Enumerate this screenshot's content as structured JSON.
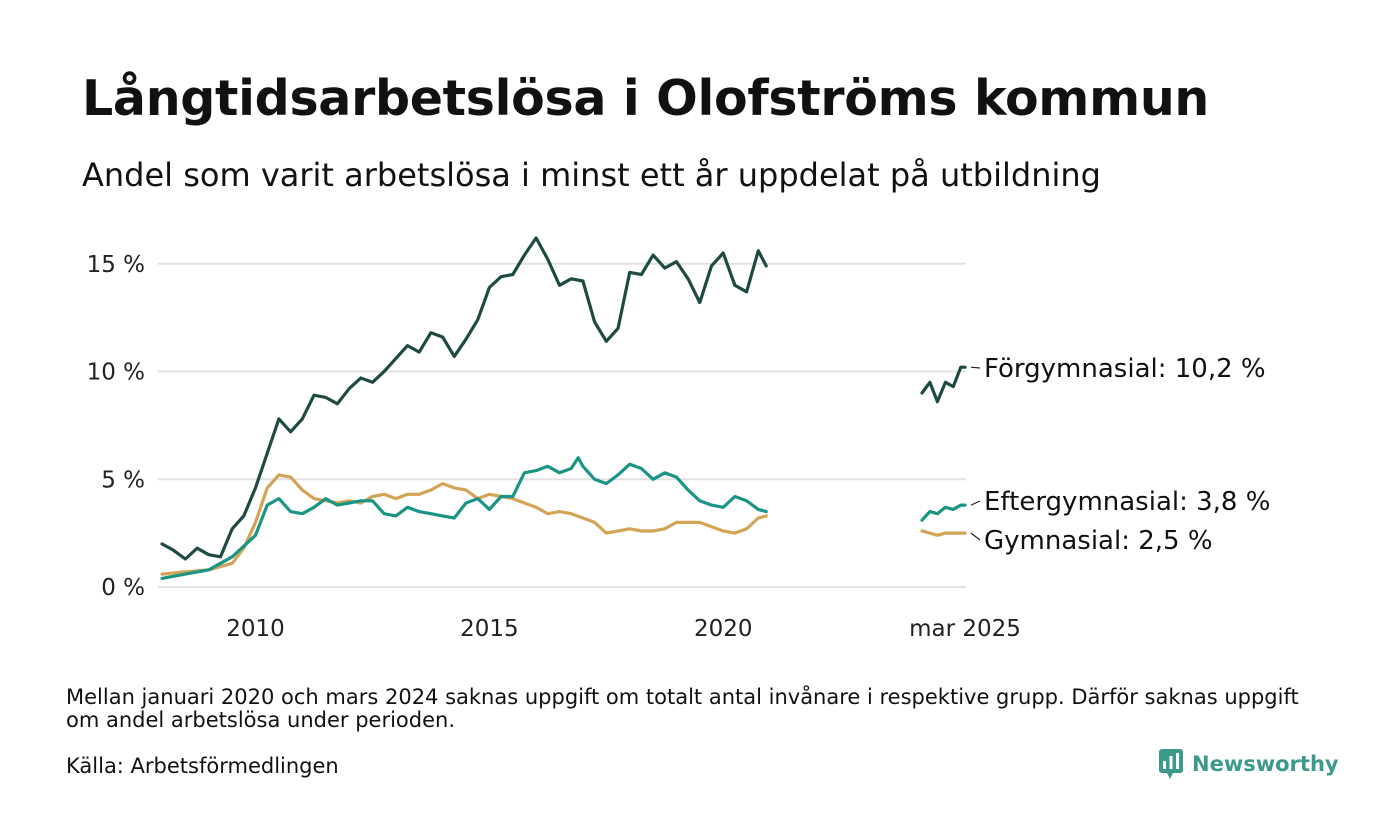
{
  "title": "Långtidsarbetslösa i Olofströms kommun",
  "subtitle": "Andel som varit arbetslösa i minst ett år uppdelat på utbildning",
  "note": "Mellan januari 2020 och mars 2024 saknas uppgift om totalt antal invånare i respektive grupp. Därför saknas uppgift om andel arbetslösa under perioden.",
  "source": "Källa: Arbetsförmedlingen",
  "brand": {
    "name": "Newsworthy",
    "icon": "newsworthy-logo-icon",
    "color": "#3d9a8b"
  },
  "chart_data": {
    "type": "line",
    "title": "Långtidsarbetslösa i Olofströms kommun",
    "subtitle": "Andel som varit arbetslösa i minst ett år uppdelat på utbildning",
    "xlabel": "",
    "ylabel": "",
    "ylim": [
      0,
      16.5
    ],
    "y_ticks": [
      0,
      5,
      10,
      15
    ],
    "y_tick_labels": [
      "0 %",
      "5 %",
      "10 %",
      "15 %"
    ],
    "x_ticks": [
      2010,
      2015,
      2020,
      2025.17
    ],
    "x_tick_labels": [
      "2010",
      "2015",
      "2020",
      "mar 2025"
    ],
    "grid": true,
    "legend": "end-labels",
    "series": [
      {
        "name": "Förgymnasial",
        "end_label": "Förgymnasial: 10,2 %",
        "color": "#1f4a44",
        "segments": [
          [
            [
              2008.0,
              2.0
            ],
            [
              2008.25,
              1.7
            ],
            [
              2008.5,
              1.3
            ],
            [
              2008.75,
              1.8
            ],
            [
              2009.0,
              1.5
            ],
            [
              2009.25,
              1.4
            ],
            [
              2009.5,
              2.7
            ],
            [
              2009.75,
              3.3
            ],
            [
              2010.0,
              4.6
            ],
            [
              2010.25,
              6.2
            ],
            [
              2010.5,
              7.8
            ],
            [
              2010.75,
              7.2
            ],
            [
              2011.0,
              7.8
            ],
            [
              2011.25,
              8.9
            ],
            [
              2011.5,
              8.8
            ],
            [
              2011.75,
              8.5
            ],
            [
              2012.0,
              9.2
            ],
            [
              2012.25,
              9.7
            ],
            [
              2012.5,
              9.5
            ],
            [
              2012.75,
              10.0
            ],
            [
              2013.0,
              10.6
            ],
            [
              2013.25,
              11.2
            ],
            [
              2013.5,
              10.9
            ],
            [
              2013.75,
              11.8
            ],
            [
              2014.0,
              11.6
            ],
            [
              2014.25,
              10.7
            ],
            [
              2014.5,
              11.5
            ],
            [
              2014.75,
              12.4
            ],
            [
              2015.0,
              13.9
            ],
            [
              2015.25,
              14.4
            ],
            [
              2015.5,
              14.5
            ],
            [
              2015.75,
              15.4
            ],
            [
              2016.0,
              16.2
            ],
            [
              2016.25,
              15.2
            ],
            [
              2016.5,
              14.0
            ],
            [
              2016.75,
              14.3
            ],
            [
              2017.0,
              14.2
            ],
            [
              2017.25,
              12.3
            ],
            [
              2017.5,
              11.4
            ],
            [
              2017.75,
              12.0
            ],
            [
              2018.0,
              14.6
            ],
            [
              2018.25,
              14.5
            ],
            [
              2018.5,
              15.4
            ],
            [
              2018.75,
              14.8
            ],
            [
              2019.0,
              15.1
            ],
            [
              2019.25,
              14.3
            ],
            [
              2019.5,
              13.2
            ],
            [
              2019.75,
              14.9
            ],
            [
              2020.0,
              15.5
            ],
            [
              2020.25,
              14.0
            ],
            [
              2020.5,
              13.7
            ],
            [
              2020.75,
              15.6
            ],
            [
              2020.92,
              14.9
            ]
          ],
          [
            [
              2024.25,
              9.0
            ],
            [
              2024.42,
              9.5
            ],
            [
              2024.58,
              8.6
            ],
            [
              2024.75,
              9.5
            ],
            [
              2024.92,
              9.3
            ],
            [
              2025.08,
              10.2
            ],
            [
              2025.17,
              10.2
            ]
          ]
        ]
      },
      {
        "name": "Eftergymnasial",
        "end_label": "Eftergymnasial:  3,8 %",
        "color": "#1a9484",
        "segments": [
          [
            [
              2008.0,
              0.4
            ],
            [
              2008.5,
              0.6
            ],
            [
              2009.0,
              0.8
            ],
            [
              2009.5,
              1.4
            ],
            [
              2010.0,
              2.4
            ],
            [
              2010.25,
              3.8
            ],
            [
              2010.5,
              4.1
            ],
            [
              2010.75,
              3.5
            ],
            [
              2011.0,
              3.4
            ],
            [
              2011.25,
              3.7
            ],
            [
              2011.5,
              4.1
            ],
            [
              2011.75,
              3.8
            ],
            [
              2012.0,
              3.9
            ],
            [
              2012.25,
              4.0
            ],
            [
              2012.5,
              4.0
            ],
            [
              2012.75,
              3.4
            ],
            [
              2013.0,
              3.3
            ],
            [
              2013.25,
              3.7
            ],
            [
              2013.5,
              3.5
            ],
            [
              2013.75,
              3.4
            ],
            [
              2014.0,
              3.3
            ],
            [
              2014.25,
              3.2
            ],
            [
              2014.5,
              3.9
            ],
            [
              2014.75,
              4.1
            ],
            [
              2015.0,
              3.6
            ],
            [
              2015.25,
              4.2
            ],
            [
              2015.5,
              4.2
            ],
            [
              2015.75,
              5.3
            ],
            [
              2016.0,
              5.4
            ],
            [
              2016.25,
              5.6
            ],
            [
              2016.5,
              5.3
            ],
            [
              2016.75,
              5.5
            ],
            [
              2016.9,
              6.0
            ],
            [
              2017.0,
              5.6
            ],
            [
              2017.25,
              5.0
            ],
            [
              2017.5,
              4.8
            ],
            [
              2017.75,
              5.2
            ],
            [
              2018.0,
              5.7
            ],
            [
              2018.25,
              5.5
            ],
            [
              2018.5,
              5.0
            ],
            [
              2018.75,
              5.3
            ],
            [
              2019.0,
              5.1
            ],
            [
              2019.25,
              4.5
            ],
            [
              2019.5,
              4.0
            ],
            [
              2019.75,
              3.8
            ],
            [
              2020.0,
              3.7
            ],
            [
              2020.25,
              4.2
            ],
            [
              2020.5,
              4.0
            ],
            [
              2020.75,
              3.6
            ],
            [
              2020.92,
              3.5
            ]
          ],
          [
            [
              2024.25,
              3.1
            ],
            [
              2024.42,
              3.5
            ],
            [
              2024.58,
              3.4
            ],
            [
              2024.75,
              3.7
            ],
            [
              2024.92,
              3.6
            ],
            [
              2025.08,
              3.8
            ],
            [
              2025.17,
              3.8
            ]
          ]
        ]
      },
      {
        "name": "Gymnasial",
        "end_label": "Gymnasial:  2,5 %",
        "color": "#d3a455",
        "segments": [
          [
            [
              2008.0,
              0.6
            ],
            [
              2008.5,
              0.7
            ],
            [
              2009.0,
              0.8
            ],
            [
              2009.5,
              1.1
            ],
            [
              2009.75,
              1.8
            ],
            [
              2010.0,
              3.0
            ],
            [
              2010.25,
              4.6
            ],
            [
              2010.5,
              5.2
            ],
            [
              2010.75,
              5.1
            ],
            [
              2011.0,
              4.5
            ],
            [
              2011.25,
              4.1
            ],
            [
              2011.5,
              4.0
            ],
            [
              2011.75,
              3.9
            ],
            [
              2012.0,
              4.0
            ],
            [
              2012.25,
              3.9
            ],
            [
              2012.5,
              4.2
            ],
            [
              2012.75,
              4.3
            ],
            [
              2013.0,
              4.1
            ],
            [
              2013.25,
              4.3
            ],
            [
              2013.5,
              4.3
            ],
            [
              2013.75,
              4.5
            ],
            [
              2014.0,
              4.8
            ],
            [
              2014.25,
              4.6
            ],
            [
              2014.5,
              4.5
            ],
            [
              2014.75,
              4.1
            ],
            [
              2015.0,
              4.3
            ],
            [
              2015.25,
              4.2
            ],
            [
              2015.5,
              4.1
            ],
            [
              2015.75,
              3.9
            ],
            [
              2016.0,
              3.7
            ],
            [
              2016.25,
              3.4
            ],
            [
              2016.5,
              3.5
            ],
            [
              2016.75,
              3.4
            ],
            [
              2017.0,
              3.2
            ],
            [
              2017.25,
              3.0
            ],
            [
              2017.5,
              2.5
            ],
            [
              2017.75,
              2.6
            ],
            [
              2018.0,
              2.7
            ],
            [
              2018.25,
              2.6
            ],
            [
              2018.5,
              2.6
            ],
            [
              2018.75,
              2.7
            ],
            [
              2019.0,
              3.0
            ],
            [
              2019.25,
              3.0
            ],
            [
              2019.5,
              3.0
            ],
            [
              2019.75,
              2.8
            ],
            [
              2020.0,
              2.6
            ],
            [
              2020.25,
              2.5
            ],
            [
              2020.5,
              2.7
            ],
            [
              2020.75,
              3.2
            ],
            [
              2020.92,
              3.3
            ]
          ],
          [
            [
              2024.25,
              2.6
            ],
            [
              2024.42,
              2.5
            ],
            [
              2024.58,
              2.4
            ],
            [
              2024.75,
              2.5
            ],
            [
              2024.92,
              2.5
            ],
            [
              2025.08,
              2.5
            ],
            [
              2025.17,
              2.5
            ]
          ]
        ]
      }
    ]
  }
}
